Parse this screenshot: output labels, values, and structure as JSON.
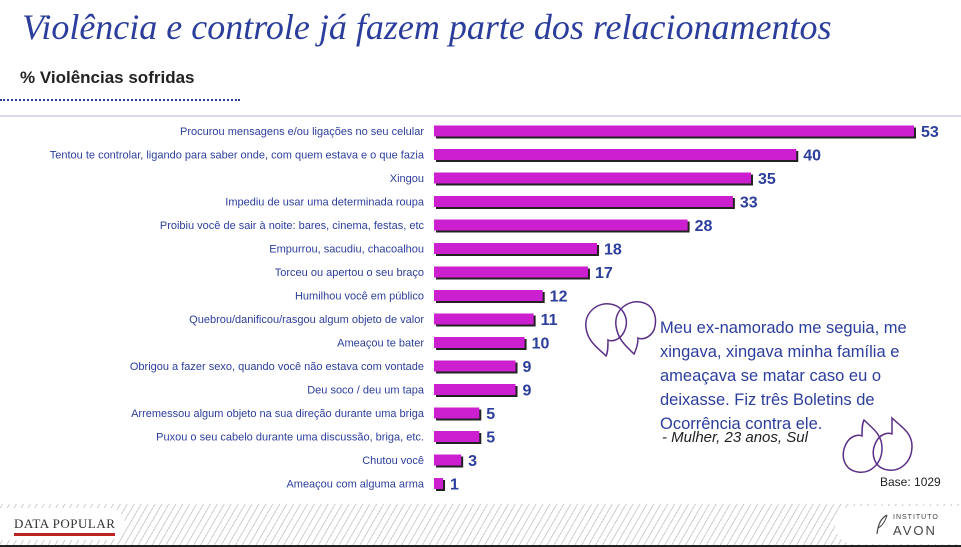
{
  "header": {
    "title": "Violência e controle já fazem parte dos relacionamentos",
    "subtitle": "% Violências sofridas"
  },
  "chart_data": {
    "type": "bar",
    "orientation": "horizontal",
    "categories": [
      "Procurou mensagens e/ou ligações no seu celular",
      "Tentou te controlar, ligando para saber onde, com quem estava e o que fazia",
      "Xingou",
      "Impediu de usar uma determinada roupa",
      "Proibiu você de sair à noite: bares, cinema, festas, etc",
      "Empurrou, sacudiu, chacoalhou",
      "Torceu ou apertou o seu braço",
      "Humilhou você em público",
      "Quebrou/danificou/rasgou algum objeto de valor",
      "Ameaçou te bater",
      "Obrigou a fazer sexo, quando você não estava com vontade",
      "Deu soco / deu um tapa",
      "Arremessou algum objeto na sua direção durante uma briga",
      "Puxou o seu cabelo durante uma discussão, briga, etc.",
      "Chutou você",
      "Ameaçou com alguma arma"
    ],
    "values": [
      53,
      40,
      35,
      33,
      28,
      18,
      17,
      12,
      11,
      10,
      9,
      9,
      5,
      5,
      3,
      1
    ],
    "xlim": [
      0,
      53
    ],
    "bar_color": "#cc1fcf",
    "label_color": "#2c3e9c"
  },
  "quote": {
    "text": "Meu ex-namorado me seguia, me xingava, xingava minha família e ameaçava se matar caso eu o deixasse. Fiz três Boletins de Ocorrência contra ele.",
    "author": "- Mulher, 23 anos, Sul"
  },
  "base_note": "Base: 1029",
  "footer": {
    "left_logo": "DATA POPULAR",
    "right_logo_top": "INSTITUTO",
    "right_logo_main": "AVON"
  }
}
